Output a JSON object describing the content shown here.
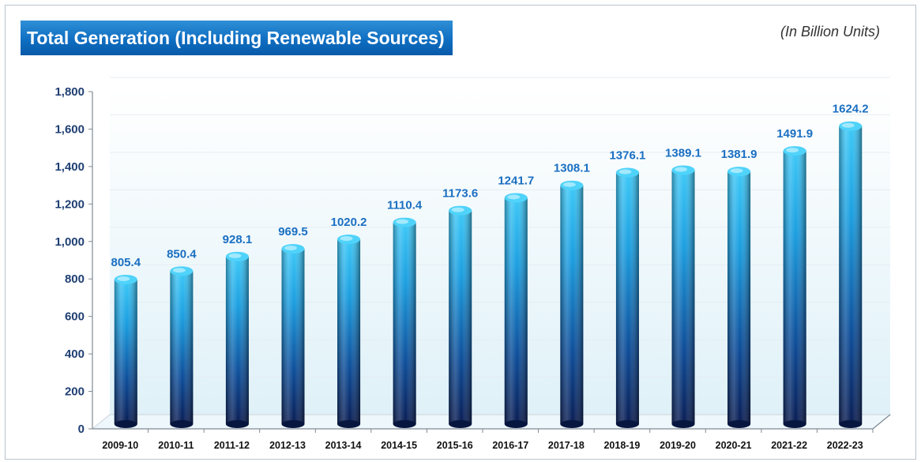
{
  "chart_data": {
    "type": "bar",
    "title": "Total Generation (Including Renewable Sources)",
    "subtitle": "(In Billion Units)",
    "categories": [
      "2009-10",
      "2010-11",
      "2011-12",
      "2012-13",
      "2013-14",
      "2014-15",
      "2015-16",
      "2016-17",
      "2017-18",
      "2018-19",
      "2019-20",
      "2020-21",
      "2021-22",
      "2022-23"
    ],
    "values": [
      805.4,
      850.4,
      928.1,
      969.5,
      1020.2,
      1110.4,
      1173.6,
      1241.7,
      1308.1,
      1376.1,
      1389.1,
      1381.9,
      1491.9,
      1624.2
    ],
    "value_labels": [
      "805.4",
      "850.4",
      "928.1",
      "969.5",
      "1020.2",
      "1110.4",
      "1173.6",
      "1241.7",
      "1308.1",
      "1376.1",
      "1389.1",
      "1381.9",
      "1491.9",
      "1624.2"
    ],
    "ylim": [
      0,
      1800
    ],
    "yticks": [
      0,
      200,
      400,
      600,
      800,
      1000,
      1200,
      1400,
      1600,
      1800
    ],
    "ytick_labels": [
      "0",
      "200",
      "400",
      "600",
      "800",
      "1,000",
      "1,200",
      "1,400",
      "1,600",
      "1,800"
    ],
    "grid": true,
    "legend": "none",
    "colors": {
      "bar_top": "#35c3f5",
      "bar_bottom": "#0a1f5c",
      "label": "#1a6fc2",
      "banner": "#0d6cc0"
    }
  }
}
